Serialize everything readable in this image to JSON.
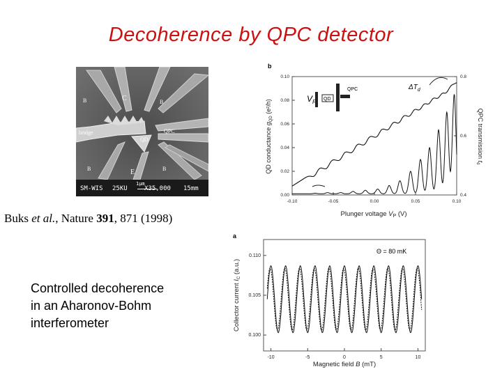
{
  "slide": {
    "title": "Decoherence by QPC detector",
    "citation": {
      "authors": "Buks",
      "etal": "et al.",
      "journal": "Nature",
      "volume": "391",
      "pages_year": "871 (1998)"
    },
    "caption_lines": [
      "Controlled decoherence",
      "in an Aharonov-Bohm",
      "interferometer"
    ]
  },
  "sem_image": {
    "labels": {
      "c": "C",
      "b_left": "B",
      "b_right_top": "B",
      "bridge": "bridge",
      "qd": "QD",
      "qpc": "QPC",
      "b_bottom_left": "B",
      "e": "E",
      "b_bottom_right": "B"
    },
    "scale_bar": {
      "left": "SM-WIS",
      "mid": "25KU",
      "right": "X35,000",
      "scale": "1μm",
      "tail": "15mm"
    }
  },
  "chart_data": [
    {
      "type": "line",
      "panel": "b",
      "xlabel": "Plunger voltage V_P (V)",
      "ylabel_left": "QD conductance g_QD (e²/h)",
      "ylabel_right": "QPC transmission t_d",
      "xlim": [
        -0.1,
        0.1
      ],
      "ylim_left": [
        0.0,
        0.1
      ],
      "ylim_right": [
        0.4,
        0.8
      ],
      "x_ticks": [
        "-0.10",
        "-0.05",
        "0.00",
        "0.05",
        "0.10"
      ],
      "y_ticks_left": [
        "0.00",
        "0.02",
        "0.04",
        "0.06",
        "0.08",
        "0.10"
      ],
      "y_ticks_right": [
        "0.4",
        "0.6",
        "0.8"
      ],
      "annotations": [
        "ΔT_d",
        "QD",
        "QPC",
        "V_P"
      ],
      "series": [
        {
          "name": "QD conductance peaks (left axis)",
          "peaks_x": [
            -0.088,
            -0.072,
            -0.057,
            -0.041,
            -0.026,
            -0.011,
            0.004,
            0.018,
            0.031,
            0.044,
            0.056,
            0.067,
            0.078,
            0.088,
            0.097
          ],
          "peaks_y": [
            0.001,
            0.0015,
            0.002,
            0.002,
            0.003,
            0.004,
            0.005,
            0.008,
            0.012,
            0.02,
            0.03,
            0.04,
            0.055,
            0.07,
            0.085
          ],
          "baseline": 0.001
        },
        {
          "name": "QPC transmission sawtooth (right axis)",
          "start": [
            -0.1,
            0.43
          ],
          "end": [
            0.1,
            0.78
          ],
          "steps_x": [
            -0.072,
            -0.057,
            -0.041,
            -0.026,
            -0.011,
            0.004,
            0.018,
            0.031,
            0.044,
            0.056,
            0.067,
            0.078,
            0.088
          ]
        }
      ]
    },
    {
      "type": "line",
      "panel": "a",
      "xlabel": "Magnetic field B (mT)",
      "ylabel": "Collector current I_C (a.u.)",
      "xlim": [
        -11,
        11
      ],
      "ylim": [
        0.098,
        0.112
      ],
      "x_ticks": [
        "-10",
        "-5",
        "0",
        "5",
        "10"
      ],
      "y_ticks": [
        "0.100",
        "0.105",
        "0.110"
      ],
      "annotations": [
        "Θ = 80 mK"
      ],
      "series": [
        {
          "name": "AB oscillation trace 1",
          "center": 0.1045,
          "amplitude": 0.0042,
          "period_mT": 2.0,
          "phase": 0.0
        },
        {
          "name": "AB oscillation trace 2 (dashed)",
          "center": 0.1045,
          "amplitude": 0.0039,
          "period_mT": 2.0,
          "phase": 0.35
        }
      ]
    }
  ]
}
